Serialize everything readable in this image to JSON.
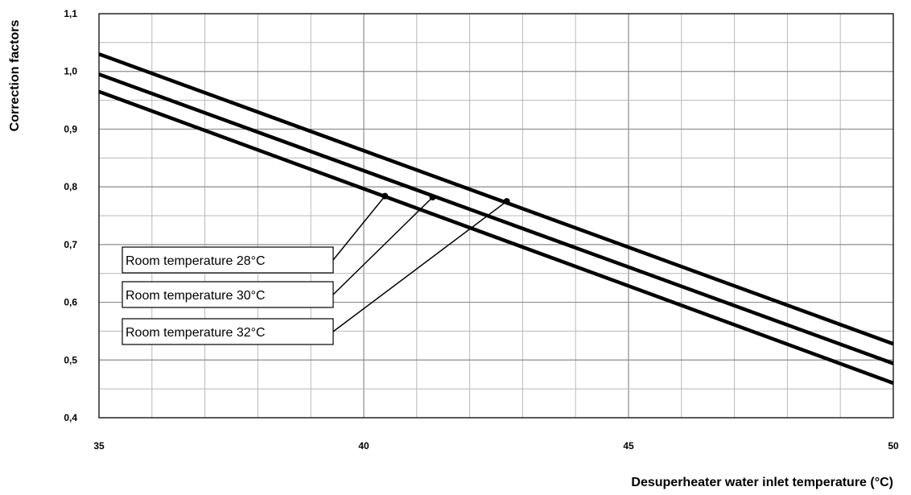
{
  "chart_data": {
    "type": "line",
    "xlabel": "Desuperheater water inlet temperature (°C)",
    "ylabel": "Correction factors",
    "xlim": [
      35,
      50
    ],
    "ylim": [
      0.4,
      1.1
    ],
    "x_ticks": [
      35,
      40,
      45,
      50
    ],
    "y_ticks": [
      "0,4",
      "0,5",
      "0,6",
      "0,7",
      "0,8",
      "0,9",
      "1,0",
      "1,1"
    ],
    "y_tick_values": [
      0.4,
      0.5,
      0.6,
      0.7,
      0.8,
      0.9,
      1.0,
      1.1
    ],
    "grid": true,
    "series": [
      {
        "name": "Room temperature 28°C",
        "x": [
          35,
          50
        ],
        "values": [
          1.03,
          0.528
        ]
      },
      {
        "name": "Room temperature 30°C",
        "x": [
          35,
          50
        ],
        "values": [
          0.995,
          0.494
        ]
      },
      {
        "name": "Room temperature 32°C",
        "x": [
          35,
          50
        ],
        "values": [
          0.965,
          0.46
        ]
      }
    ],
    "annotations": [
      {
        "label": "Room temperature 28°C",
        "point_x": 40.4,
        "point_y": 0.784
      },
      {
        "label": "Room temperature 30°C",
        "point_x": 41.3,
        "point_y": 0.782
      },
      {
        "label": "Room temperature 32°C",
        "point_x": 42.7,
        "point_y": 0.775
      }
    ],
    "colors": {
      "line": "#000000",
      "grid": "#b8b8b8",
      "grid_major": "#8c8c8c"
    }
  }
}
